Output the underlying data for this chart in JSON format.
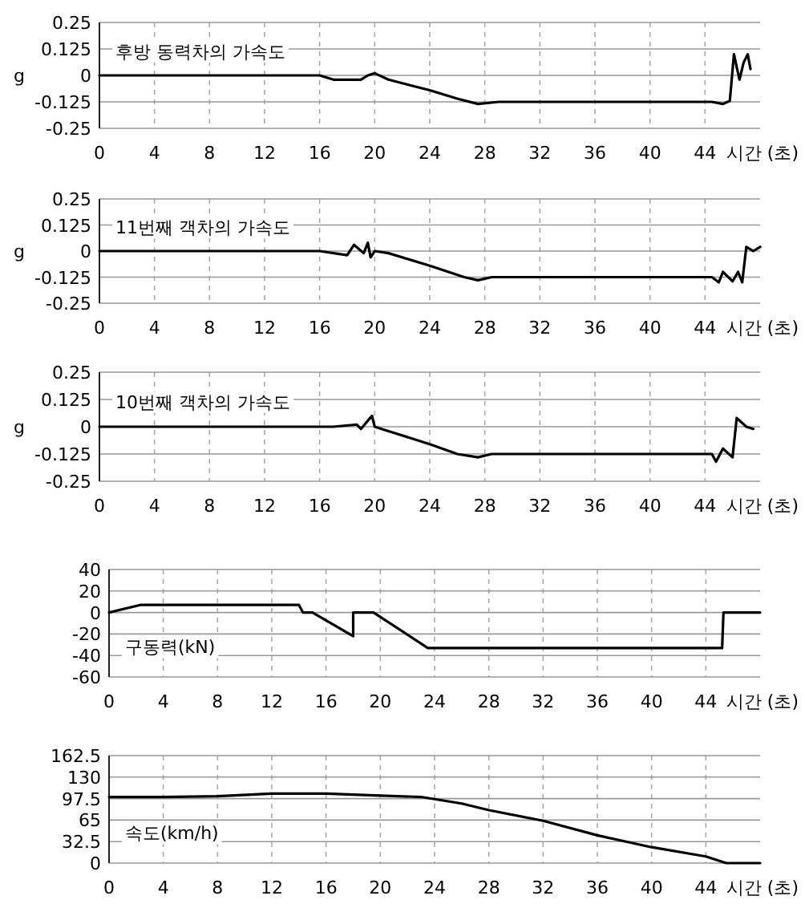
{
  "chart_data": [
    {
      "type": "line",
      "title": "후방 동력차의 가속도",
      "ylabel": "g",
      "xlabel": "시간 (초)",
      "color": "#000000",
      "grid": true,
      "x": [
        0,
        16,
        17,
        19,
        19.5,
        20,
        21,
        24,
        26,
        27.5,
        29,
        44.5,
        45.3,
        45.8,
        46.1,
        46.5,
        46.8,
        47.1,
        47.3
      ],
      "values": [
        0,
        0,
        -0.02,
        -0.02,
        0,
        0.01,
        -0.02,
        -0.07,
        -0.11,
        -0.135,
        -0.125,
        -0.125,
        -0.135,
        -0.12,
        0.1,
        -0.02,
        0.06,
        0.1,
        0.03
      ],
      "xlim": [
        0,
        48
      ],
      "xticks": [
        0,
        4,
        8,
        12,
        16,
        20,
        24,
        28,
        32,
        36,
        40,
        44
      ],
      "ylim": [
        -0.25,
        0.25
      ],
      "yticks": [
        -0.25,
        -0.125,
        0,
        0.125,
        0.25
      ]
    },
    {
      "type": "line",
      "title": "11번째 객차의 가속도",
      "ylabel": "g",
      "xlabel": "시간 (초)",
      "color": "#000000",
      "grid": true,
      "x": [
        0,
        16,
        18,
        18.5,
        19.2,
        19.5,
        19.7,
        20,
        21,
        24,
        26.5,
        27.5,
        28.5,
        44.5,
        45,
        45.3,
        46,
        46.4,
        46.7,
        47,
        47.5,
        48
      ],
      "values": [
        0,
        0,
        -0.02,
        0.03,
        -0.01,
        0.04,
        -0.03,
        0,
        -0.01,
        -0.07,
        -0.125,
        -0.14,
        -0.125,
        -0.125,
        -0.15,
        -0.1,
        -0.145,
        -0.1,
        -0.15,
        0.02,
        0,
        0.02
      ],
      "xlim": [
        0,
        48
      ],
      "xticks": [
        0,
        4,
        8,
        12,
        16,
        20,
        24,
        28,
        32,
        36,
        40,
        44
      ],
      "ylim": [
        -0.25,
        0.25
      ],
      "yticks": [
        -0.25,
        -0.125,
        0,
        0.125,
        0.25
      ]
    },
    {
      "type": "line",
      "title": "10번째 객차의 가속도",
      "ylabel": "g",
      "xlabel": "시간 (초)",
      "color": "#000000",
      "grid": true,
      "x": [
        0,
        17,
        18.7,
        19,
        19.8,
        20,
        21,
        24,
        26,
        27.5,
        28.5,
        44.5,
        44.8,
        45.3,
        46,
        46.3,
        47,
        47.5
      ],
      "values": [
        0,
        0,
        0.01,
        -0.01,
        0.05,
        0,
        -0.02,
        -0.08,
        -0.125,
        -0.14,
        -0.125,
        -0.125,
        -0.16,
        -0.1,
        -0.14,
        0.04,
        0,
        -0.01
      ],
      "xlim": [
        0,
        48
      ],
      "xticks": [
        0,
        4,
        8,
        12,
        16,
        20,
        24,
        28,
        32,
        36,
        40,
        44
      ],
      "ylim": [
        -0.25,
        0.25
      ],
      "yticks": [
        -0.25,
        -0.125,
        0,
        0.125,
        0.25
      ]
    },
    {
      "type": "line",
      "title": "구동력(kN)",
      "xlabel": "시간 (초)",
      "color": "#000000",
      "grid": true,
      "x": [
        0,
        2.3,
        14,
        14.3,
        15,
        18,
        18,
        19.5,
        23.5,
        45.2,
        45.3,
        48
      ],
      "values": [
        0,
        7,
        7,
        0,
        0,
        -22,
        0,
        0,
        -33,
        -33,
        0,
        0
      ],
      "xlim": [
        0,
        48
      ],
      "xticks": [
        0,
        4,
        8,
        12,
        16,
        20,
        24,
        28,
        32,
        36,
        40,
        44
      ],
      "ylim": [
        -60,
        40
      ],
      "yticks": [
        -60,
        -40,
        -20,
        0,
        20,
        40
      ]
    },
    {
      "type": "line",
      "title": "속도(km/h)",
      "xlabel": "시간 (초)",
      "color": "#000000",
      "grid": true,
      "x": [
        0,
        4,
        8,
        12,
        16,
        20,
        23,
        26,
        28,
        32,
        36,
        40,
        44,
        45.5,
        48
      ],
      "values": [
        100,
        100,
        101,
        105,
        105,
        102,
        100,
        90,
        80,
        64,
        42,
        24,
        10,
        0,
        0
      ],
      "xlim": [
        0,
        48
      ],
      "xticks": [
        0,
        4,
        8,
        12,
        16,
        20,
        24,
        28,
        32,
        36,
        40,
        44
      ],
      "ylim": [
        0,
        162.5
      ],
      "yticks": [
        0,
        32.5,
        65,
        97.5,
        130,
        162.5
      ]
    }
  ]
}
